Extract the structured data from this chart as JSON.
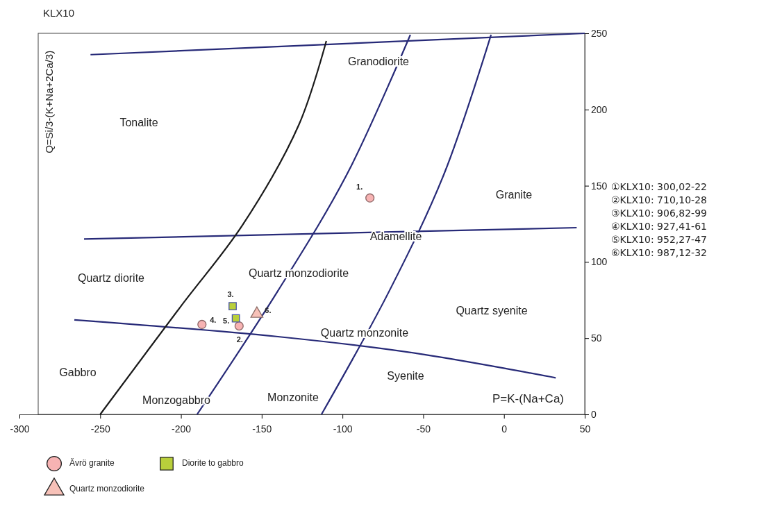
{
  "chart_data": {
    "type": "scatter",
    "title": "KLX10",
    "xlabel": "P=K-(Na+Ca)",
    "ylabel": "Q=Si/3-(K+Na+2Ca/3)",
    "xlim": [
      -300,
      50
    ],
    "ylim": [
      0,
      250
    ],
    "xticks": [
      -300,
      -250,
      -200,
      -150,
      -100,
      -50,
      0,
      50
    ],
    "yticks": [
      0,
      50,
      100,
      150,
      200,
      250
    ],
    "grid": false,
    "legend": "bottom",
    "series": [
      {
        "type": "line",
        "color": "#272a78",
        "x": [
          -256,
          50
        ],
        "values": [
          236,
          250
        ]
      },
      {
        "type": "line",
        "color": "#272a78",
        "x": [
          -260,
          45
        ],
        "values": [
          115,
          122.5
        ]
      },
      {
        "type": "line",
        "color": "#272a78",
        "x": [
          -266,
          -140,
          -54,
          32
        ],
        "values": [
          62,
          51,
          40,
          24
        ]
      },
      {
        "type": "line",
        "color": "#1a1a1a",
        "x": [
          -250,
          -200,
          -162,
          -127,
          -110
        ],
        "values": [
          0,
          71,
          124,
          190,
          245
        ]
      },
      {
        "type": "line",
        "color": "#272a78",
        "x": [
          -190,
          -140,
          -97,
          -58
        ],
        "values": [
          0,
          81,
          158,
          249
        ]
      },
      {
        "type": "line",
        "color": "#272a78",
        "x": [
          -113,
          -71,
          -37,
          -8
        ],
        "values": [
          0,
          81,
          158,
          249
        ]
      },
      {
        "type": "scatter",
        "name": "Ävrö granite",
        "color": "#f7b3b3",
        "marker": "circle",
        "x": [
          -83,
          -164,
          -187
        ],
        "values": [
          142,
          58,
          59
        ]
      },
      {
        "type": "scatter",
        "name": "Diorite to gabbro",
        "color": "#b9cf3b",
        "marker": "square",
        "x": [
          -168,
          -166
        ],
        "values": [
          71,
          63
        ]
      },
      {
        "type": "scatter",
        "name": "Quartz monzodiorite",
        "color": "#f7c1b8",
        "marker": "triangle",
        "x": [
          -153
        ],
        "values": [
          66
        ]
      }
    ],
    "annotations": [
      "Granodiorite",
      "Tonalite",
      "Granite",
      "Adamellite",
      "Quartz monzodiorite",
      "Quartz diorite",
      "Quartz syenite",
      "Quartz monzonite",
      "Gabbro",
      "Syenite",
      "Monzogabbro",
      "Monzonite",
      {
        "text": "1.",
        "x": -83,
        "y": 142
      },
      {
        "text": "2.",
        "x": -164,
        "y": 58
      },
      {
        "text": "3.",
        "x": -168,
        "y": 71
      },
      {
        "text": "4.",
        "x": -187,
        "y": 59
      },
      {
        "text": "5.",
        "x": -166,
        "y": 63
      },
      {
        "text": "6.",
        "x": -153,
        "y": 66
      },
      "①KLX10: 300,02-22",
      "②KLX10: 710,10-28",
      "③KLX10: 906,82-99",
      "④KLX10: 927,41-61",
      "⑤KLX10: 952,27-47",
      "⑥KLX10: 987,12-32"
    ]
  }
}
